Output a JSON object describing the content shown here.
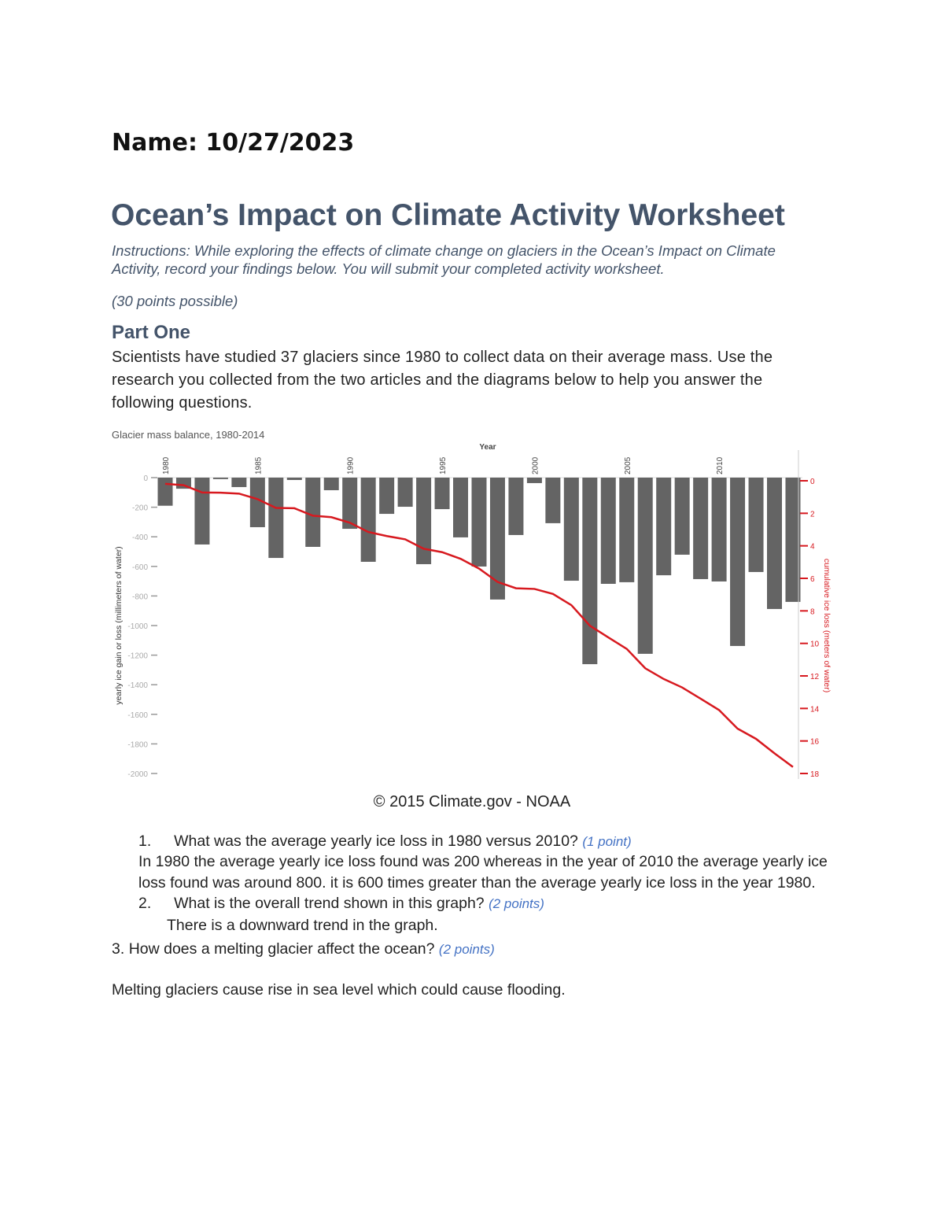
{
  "header": {
    "name_line": "Name: 10/27/2023"
  },
  "title": "Ocean’s Impact on Climate Activity Worksheet",
  "instructions": {
    "line1": "Instructions: While exploring the effects of climate change on glaciers in the Ocean’s Impact on Climate",
    "line2": "Activity, record your findings below. You will submit your completed activity worksheet."
  },
  "points_possible": "(30 points possible)",
  "part_one": {
    "heading": "Part One",
    "lines": [
      "Scientists have studied 37 glaciers since 1980 to collect data on their average mass. Use the",
      "research you collected from the two articles and the diagrams below to help you answer the",
      "following questions."
    ]
  },
  "chart_data": {
    "type": "bar",
    "title": "Glacier mass balance, 1980-2014",
    "xlabel": "Year",
    "ylabel": "yearly ice gain or loss (millimeters of water)",
    "y2label": "cumulative ice loss (meters of water)",
    "x_tick_labels": [
      "1980",
      "1985",
      "1990",
      "1995",
      "2000",
      "2005",
      "2010"
    ],
    "y_tick_labels": [
      "0",
      "-200",
      "-400",
      "-600",
      "-800",
      "-1000",
      "-1200",
      "-1400",
      "-1600",
      "-1800",
      "-2000"
    ],
    "y2_tick_labels": [
      "0",
      "2",
      "4",
      "6",
      "8",
      "10",
      "12",
      "14",
      "16",
      "18"
    ],
    "ylim": [
      -2000,
      0
    ],
    "y2lim": [
      0,
      18
    ],
    "grid": false,
    "bar_color": "#646464",
    "line_color": "#d7191f",
    "categories": [
      1980,
      1981,
      1982,
      1983,
      1984,
      1985,
      1986,
      1987,
      1988,
      1989,
      1990,
      1991,
      1992,
      1993,
      1994,
      1995,
      1996,
      1997,
      1998,
      1999,
      2000,
      2001,
      2002,
      2003,
      2004,
      2005,
      2006,
      2007,
      2008,
      2009,
      2010,
      2011,
      2012,
      2013,
      2014
    ],
    "series": [
      {
        "type": "bar",
        "axis": "left",
        "values": [
          -190,
          -75,
          -452,
          -10,
          -64,
          -335,
          -543,
          -16,
          -468,
          -85,
          -346,
          -569,
          -245,
          -197,
          -585,
          -213,
          -404,
          -601,
          -824,
          -388,
          -37,
          -308,
          -697,
          -1261,
          -718,
          -707,
          -1191,
          -660,
          -521,
          -686,
          -702,
          -1138,
          -638,
          -888,
          -840
        ]
      },
      {
        "type": "line",
        "axis": "right",
        "values": [
          0.19,
          0.27,
          0.72,
          0.73,
          0.79,
          1.13,
          1.67,
          1.69,
          2.15,
          2.24,
          2.58,
          3.15,
          3.4,
          3.6,
          4.18,
          4.39,
          4.8,
          5.4,
          6.22,
          6.61,
          6.65,
          6.96,
          7.65,
          8.91,
          9.63,
          10.34,
          11.53,
          12.19,
          12.71,
          13.4,
          14.1,
          15.24,
          15.87,
          16.76,
          17.6
        ]
      }
    ]
  },
  "caption": "© 2015 Climate.gov - NOAA",
  "questions": [
    {
      "number": "1.",
      "text": "What was the average yearly ice loss in 1980 versus 2010?",
      "points": "(1 point)",
      "answer": [
        "In 1980 the average yearly ice loss found was 200 whereas in the year of 2010 the average yearly ice",
        "loss found was around 800. it is 600 times greater than the average yearly ice loss in the year 1980."
      ]
    },
    {
      "number": "2.",
      "text": "What is the overall trend shown in this graph?",
      "points": "(2 points)",
      "answer": [
        "There is a downward trend in the graph."
      ]
    },
    {
      "number": "3.",
      "text": "How does a melting glacier affect the ocean?",
      "points": "(2 points)",
      "answer": [
        "Melting glaciers cause rise in sea level which could cause flooding."
      ]
    }
  ]
}
